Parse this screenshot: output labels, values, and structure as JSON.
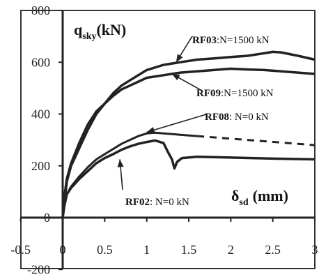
{
  "chart_data": {
    "type": "line",
    "xlabel": {
      "main": "δ",
      "sub": "sd",
      "unit": "(mm)"
    },
    "ylabel": {
      "main": "q",
      "sub": "sky",
      "unit": "(kN)"
    },
    "xlim": [
      -0.5,
      3
    ],
    "ylim": [
      -200,
      800
    ],
    "x_ticks": [
      "-0.5",
      "0",
      "0.5",
      "1",
      "1.5",
      "2",
      "2.5",
      "3"
    ],
    "y_ticks": [
      "-200",
      "0",
      "200",
      "400",
      "600",
      "800"
    ],
    "grid": false,
    "series": [
      {
        "name": "RF03",
        "style": "solid-thick",
        "points": [
          [
            0,
            0
          ],
          [
            0.02,
            60
          ],
          [
            0.05,
            140
          ],
          [
            0.1,
            200
          ],
          [
            0.2,
            270
          ],
          [
            0.3,
            340
          ],
          [
            0.4,
            400
          ],
          [
            0.5,
            440
          ],
          [
            0.6,
            480
          ],
          [
            0.7,
            510
          ],
          [
            0.8,
            530
          ],
          [
            0.9,
            550
          ],
          [
            1.0,
            570
          ],
          [
            1.2,
            590
          ],
          [
            1.4,
            600
          ],
          [
            1.6,
            610
          ],
          [
            1.8,
            615
          ],
          [
            2.0,
            620
          ],
          [
            2.2,
            625
          ],
          [
            2.4,
            635
          ],
          [
            2.5,
            640
          ],
          [
            2.6,
            638
          ],
          [
            2.8,
            625
          ],
          [
            3.0,
            610
          ]
        ]
      },
      {
        "name": "RF09",
        "style": "solid-thick",
        "points": [
          [
            0,
            0
          ],
          [
            0.02,
            80
          ],
          [
            0.05,
            150
          ],
          [
            0.1,
            210
          ],
          [
            0.2,
            290
          ],
          [
            0.3,
            360
          ],
          [
            0.4,
            410
          ],
          [
            0.5,
            440
          ],
          [
            0.6,
            470
          ],
          [
            0.7,
            495
          ],
          [
            0.8,
            510
          ],
          [
            0.9,
            525
          ],
          [
            1.0,
            540
          ],
          [
            1.2,
            550
          ],
          [
            1.4,
            560
          ],
          [
            1.6,
            565
          ],
          [
            1.8,
            570
          ],
          [
            2.0,
            575
          ],
          [
            2.2,
            572
          ],
          [
            2.4,
            570
          ],
          [
            2.6,
            565
          ],
          [
            2.8,
            560
          ],
          [
            3.0,
            555
          ]
        ]
      },
      {
        "name": "RF08",
        "style": "solid-then-dashed",
        "dash_from_x": 1.6,
        "points": [
          [
            0,
            0
          ],
          [
            0.02,
            50
          ],
          [
            0.05,
            90
          ],
          [
            0.1,
            120
          ],
          [
            0.2,
            160
          ],
          [
            0.3,
            195
          ],
          [
            0.4,
            225
          ],
          [
            0.5,
            245
          ],
          [
            0.6,
            265
          ],
          [
            0.7,
            285
          ],
          [
            0.8,
            300
          ],
          [
            0.9,
            315
          ],
          [
            1.0,
            325
          ],
          [
            1.1,
            328
          ],
          [
            1.2,
            325
          ],
          [
            1.4,
            320
          ],
          [
            1.6,
            315
          ],
          [
            2.0,
            305
          ],
          [
            2.4,
            295
          ],
          [
            2.8,
            285
          ],
          [
            3.0,
            280
          ]
        ]
      },
      {
        "name": "RF02",
        "style": "solid-thick",
        "points": [
          [
            0,
            0
          ],
          [
            0.02,
            45
          ],
          [
            0.05,
            90
          ],
          [
            0.1,
            115
          ],
          [
            0.2,
            150
          ],
          [
            0.3,
            180
          ],
          [
            0.4,
            210
          ],
          [
            0.5,
            230
          ],
          [
            0.6,
            245
          ],
          [
            0.7,
            262
          ],
          [
            0.8,
            275
          ],
          [
            0.9,
            285
          ],
          [
            1.0,
            292
          ],
          [
            1.1,
            298
          ],
          [
            1.2,
            288
          ],
          [
            1.25,
            255
          ],
          [
            1.3,
            225
          ],
          [
            1.33,
            190
          ],
          [
            1.36,
            215
          ],
          [
            1.42,
            230
          ],
          [
            1.6,
            235
          ],
          [
            2.0,
            232
          ],
          [
            2.5,
            228
          ],
          [
            3.0,
            225
          ]
        ]
      }
    ],
    "annotations": [
      {
        "bold": "RF03",
        "rest": ":N=1500 kN",
        "arrow_to": [
          1.35,
          600
        ]
      },
      {
        "bold": "RF09",
        "rest": ":N=1500 kN",
        "arrow_to": [
          1.3,
          555
        ]
      },
      {
        "bold": "RF08",
        "rest": ": N=0 kN",
        "arrow_to": [
          1.0,
          330
        ]
      },
      {
        "bold": "RF02",
        "rest": ": N=0 kN",
        "arrow_to": [
          0.68,
          225
        ]
      }
    ]
  }
}
